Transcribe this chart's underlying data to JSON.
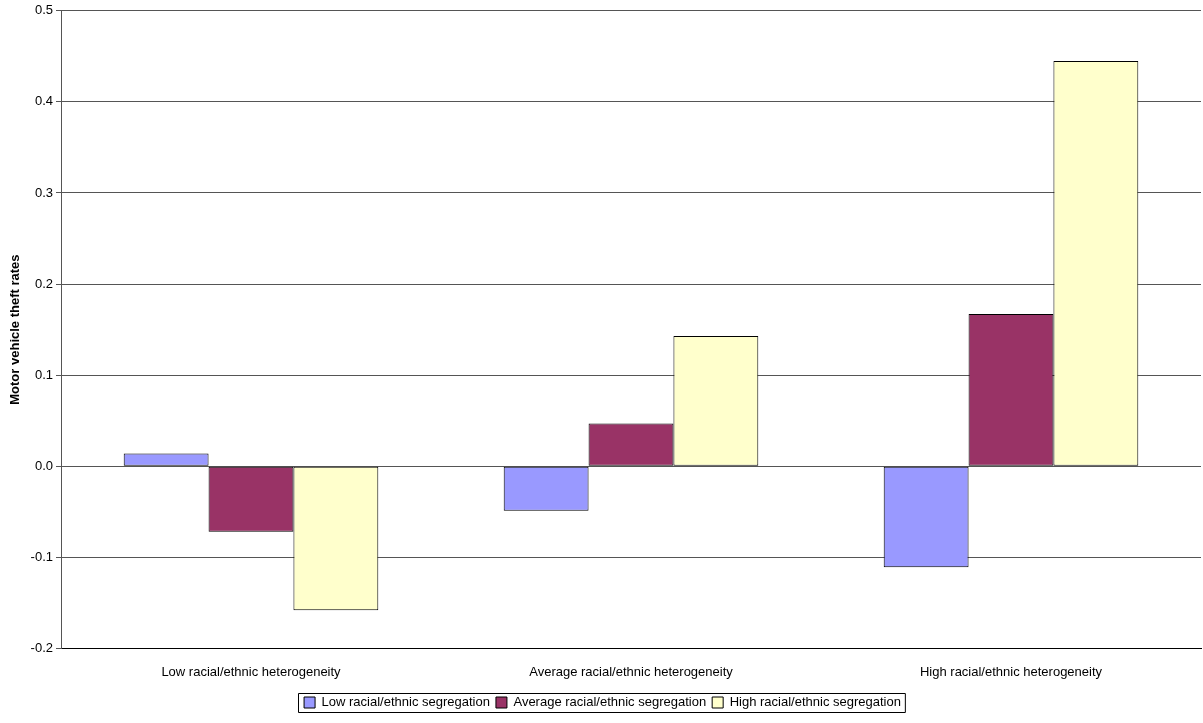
{
  "chart_data": {
    "type": "bar",
    "ylabel": "Motor vehicle theft rates",
    "categories": [
      "Low racial/ethnic heterogeneity",
      "Average racial/ethnic heterogeneity",
      "High racial/ethnic heterogeneity"
    ],
    "series": [
      {
        "name": "Low racial/ethnic segregation",
        "color": "#9999ff",
        "values": [
          0.014,
          -0.049,
          -0.111
        ]
      },
      {
        "name": "Average racial/ethnic segregation",
        "color": "#993366",
        "values": [
          -0.072,
          0.047,
          0.167
        ]
      },
      {
        "name": "High racial/ethnic segregation",
        "color": "#ffffcc",
        "values": [
          -0.158,
          0.143,
          0.445
        ]
      }
    ],
    "ylim": [
      -0.2,
      0.5
    ],
    "yticks": [
      {
        "value": -0.2,
        "label": "-0.2"
      },
      {
        "value": -0.1,
        "label": "-0.1"
      },
      {
        "value": 0,
        "label": "0.0"
      },
      {
        "value": 0.1,
        "label": "0.1"
      },
      {
        "value": 0.2,
        "label": "0.2"
      },
      {
        "value": 0.3,
        "label": "0.3"
      },
      {
        "value": 0.4,
        "label": "0.4"
      },
      {
        "value": 0.5,
        "label": "0.5"
      }
    ],
    "grid": "y",
    "legend": "bottom"
  }
}
